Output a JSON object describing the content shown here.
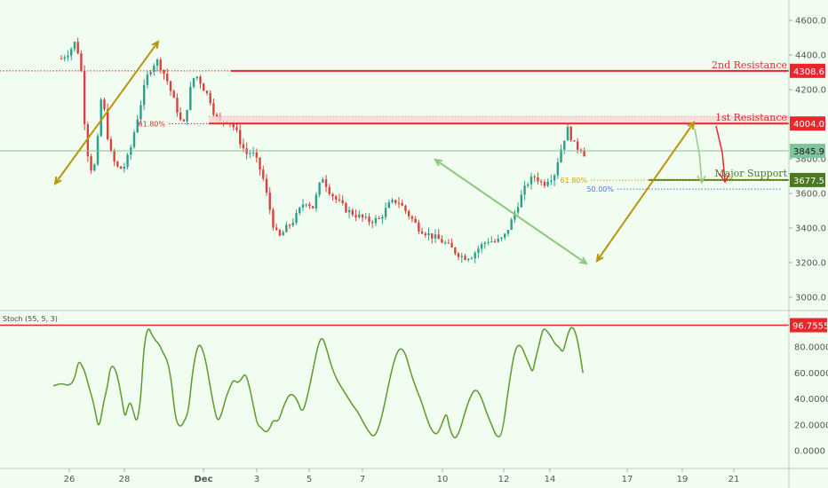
{
  "chart_data": [
    {
      "type": "candlestick",
      "name": "price",
      "ylim": [
        2880,
        4720
      ],
      "y_ticks": [
        "4600.0",
        "4400.0",
        "4200.0",
        "4000.0",
        "3800.0",
        "3600.0",
        "3400.0",
        "3200.0",
        "3000.0"
      ],
      "x_ticks": [
        "26",
        "28",
        "Dec",
        "3",
        "5",
        "7",
        "10",
        "12",
        "14",
        "17",
        "19",
        "21"
      ],
      "levels": [
        {
          "name": "2nd Resistance",
          "value": 4308.6,
          "label": "4308.6",
          "color": "#e8262b"
        },
        {
          "name": "1st Resistance",
          "value": 4004.0,
          "label": "4004.0",
          "color": "#e8262b"
        },
        {
          "name": "Major Support",
          "value": 3677.5,
          "label": "3677.5",
          "color": "#4a7a1c"
        }
      ],
      "last_price": {
        "value": 3845.9,
        "label": "3845.9",
        "color": "#7fc49a"
      },
      "fib_labels": {
        "left_618": "61.80%",
        "right_618": "61.80%",
        "right_500": "50.00%"
      },
      "close_path": [
        [
          -0.3,
          4380
        ],
        [
          0.0,
          4420
        ],
        [
          0.2,
          4470
        ],
        [
          0.4,
          4390
        ],
        [
          0.5,
          4220
        ],
        [
          0.6,
          3950
        ],
        [
          0.75,
          3770
        ],
        [
          0.9,
          3720
        ],
        [
          1.0,
          3800
        ],
        [
          1.1,
          3950
        ],
        [
          1.2,
          4140
        ],
        [
          1.3,
          4100
        ],
        [
          1.4,
          4000
        ],
        [
          1.5,
          3860
        ],
        [
          1.6,
          3820
        ],
        [
          1.75,
          3760
        ],
        [
          1.9,
          3740
        ],
        [
          2.1,
          3760
        ],
        [
          2.3,
          3850
        ],
        [
          2.5,
          3990
        ],
        [
          2.7,
          4120
        ],
        [
          2.9,
          4260
        ],
        [
          3.1,
          4330
        ],
        [
          3.3,
          4370
        ],
        [
          3.5,
          4320
        ],
        [
          3.7,
          4250
        ],
        [
          3.9,
          4160
        ],
        [
          4.1,
          4070
        ],
        [
          4.2,
          4020
        ],
        [
          4.35,
          4000
        ],
        [
          4.5,
          4150
        ],
        [
          4.6,
          4220
        ],
        [
          4.75,
          4290
        ],
        [
          4.9,
          4260
        ],
        [
          5.1,
          4200
        ],
        [
          5.3,
          4150
        ],
        [
          5.5,
          4050
        ],
        [
          5.7,
          4010
        ],
        [
          5.9,
          4030
        ],
        [
          6.1,
          4010
        ],
        [
          6.3,
          3960
        ],
        [
          6.5,
          3880
        ],
        [
          6.7,
          3830
        ],
        [
          6.9,
          3840
        ],
        [
          7.1,
          3780
        ],
        [
          7.3,
          3700
        ],
        [
          7.5,
          3560
        ],
        [
          7.7,
          3420
        ],
        [
          7.9,
          3340
        ],
        [
          8.2,
          3400
        ],
        [
          8.5,
          3450
        ],
        [
          8.9,
          3560
        ],
        [
          9.2,
          3520
        ],
        [
          9.4,
          3620
        ],
        [
          9.55,
          3700
        ],
        [
          9.8,
          3620
        ],
        [
          10.1,
          3560
        ],
        [
          10.5,
          3500
        ],
        [
          10.9,
          3470
        ],
        [
          11.3,
          3440
        ],
        [
          11.7,
          3450
        ],
        [
          12.1,
          3540
        ],
        [
          12.4,
          3560
        ],
        [
          12.8,
          3480
        ],
        [
          13.2,
          3400
        ],
        [
          13.6,
          3360
        ],
        [
          14.0,
          3330
        ],
        [
          14.3,
          3300
        ],
        [
          14.6,
          3260
        ],
        [
          14.9,
          3230
        ],
        [
          15.2,
          3240
        ],
        [
          15.5,
          3290
        ],
        [
          15.8,
          3330
        ],
        [
          16.1,
          3320
        ],
        [
          16.4,
          3340
        ],
        [
          16.7,
          3440
        ],
        [
          17.0,
          3560
        ],
        [
          17.3,
          3660
        ],
        [
          17.6,
          3700
        ],
        [
          17.9,
          3650
        ],
        [
          18.1,
          3690
        ],
        [
          18.3,
          3700
        ],
        [
          18.5,
          3820
        ],
        [
          18.7,
          3920
        ],
        [
          18.85,
          3980
        ],
        [
          19.0,
          3900
        ],
        [
          19.15,
          3860
        ],
        [
          19.3,
          3870
        ],
        [
          19.45,
          3830
        ]
      ],
      "annotations": [
        {
          "type": "text",
          "text": "2nd Resistance"
        },
        {
          "type": "text",
          "text": "1st Resistance"
        },
        {
          "type": "text",
          "text": "Major Support"
        }
      ]
    },
    {
      "type": "line",
      "name": "Stoch (55, 5, 3)",
      "legend": "Stoch (55, 5, 3)",
      "ylim": [
        -10,
        110
      ],
      "y_ticks": [
        "80.0000",
        "60.0000",
        "40.0000",
        "20.0000",
        "0.0000"
      ],
      "top_level": {
        "value": 96.7555,
        "label": "96.7555",
        "color": "#e8262b"
      },
      "color": "#5c9a2a",
      "series_points": [
        [
          -0.6,
          50
        ],
        [
          -0.3,
          52
        ],
        [
          0.0,
          50
        ],
        [
          0.2,
          55
        ],
        [
          0.35,
          70
        ],
        [
          0.5,
          65
        ],
        [
          0.6,
          60
        ],
        [
          0.8,
          45
        ],
        [
          0.9,
          38
        ],
        [
          1.0,
          28
        ],
        [
          1.1,
          18
        ],
        [
          1.2,
          25
        ],
        [
          1.3,
          38
        ],
        [
          1.45,
          50
        ],
        [
          1.55,
          65
        ],
        [
          1.7,
          65
        ],
        [
          1.85,
          55
        ],
        [
          2.0,
          38
        ],
        [
          2.1,
          25
        ],
        [
          2.2,
          33
        ],
        [
          2.3,
          38
        ],
        [
          2.4,
          32
        ],
        [
          2.55,
          20
        ],
        [
          2.7,
          40
        ],
        [
          2.8,
          75
        ],
        [
          2.9,
          90
        ],
        [
          3.0,
          95
        ],
        [
          3.1,
          90
        ],
        [
          3.25,
          85
        ],
        [
          3.4,
          82
        ],
        [
          3.55,
          75
        ],
        [
          3.7,
          70
        ],
        [
          3.85,
          55
        ],
        [
          3.95,
          35
        ],
        [
          4.05,
          22
        ],
        [
          4.2,
          18
        ],
        [
          4.35,
          23
        ],
        [
          4.5,
          30
        ],
        [
          4.65,
          60
        ],
        [
          4.8,
          77
        ],
        [
          4.9,
          82
        ],
        [
          5.0,
          80
        ],
        [
          5.15,
          70
        ],
        [
          5.3,
          52
        ],
        [
          5.45,
          35
        ],
        [
          5.6,
          22
        ],
        [
          5.75,
          28
        ],
        [
          5.9,
          40
        ],
        [
          6.05,
          48
        ],
        [
          6.2,
          55
        ],
        [
          6.35,
          52
        ],
        [
          6.5,
          55
        ],
        [
          6.65,
          60
        ],
        [
          6.8,
          50
        ],
        [
          6.95,
          35
        ],
        [
          7.1,
          20
        ],
        [
          7.25,
          18
        ],
        [
          7.4,
          14
        ],
        [
          7.55,
          16
        ],
        [
          7.7,
          24
        ],
        [
          7.9,
          22
        ],
        [
          8.1,
          35
        ],
        [
          8.35,
          45
        ],
        [
          8.6,
          40
        ],
        [
          8.8,
          28
        ],
        [
          9.0,
          42
        ],
        [
          9.2,
          62
        ],
        [
          9.4,
          82
        ],
        [
          9.55,
          88
        ],
        [
          9.7,
          80
        ],
        [
          9.9,
          65
        ],
        [
          10.1,
          55
        ],
        [
          10.3,
          48
        ],
        [
          10.5,
          42
        ],
        [
          10.7,
          35
        ],
        [
          10.9,
          30
        ],
        [
          11.1,
          22
        ],
        [
          11.3,
          15
        ],
        [
          11.5,
          10
        ],
        [
          11.7,
          18
        ],
        [
          11.9,
          35
        ],
        [
          12.1,
          55
        ],
        [
          12.3,
          72
        ],
        [
          12.5,
          80
        ],
        [
          12.7,
          75
        ],
        [
          12.9,
          60
        ],
        [
          13.1,
          48
        ],
        [
          13.3,
          38
        ],
        [
          13.5,
          25
        ],
        [
          13.7,
          15
        ],
        [
          13.9,
          12
        ],
        [
          14.1,
          22
        ],
        [
          14.25,
          30
        ],
        [
          14.35,
          18
        ],
        [
          14.55,
          8
        ],
        [
          14.75,
          15
        ],
        [
          14.95,
          30
        ],
        [
          15.15,
          42
        ],
        [
          15.35,
          48
        ],
        [
          15.55,
          42
        ],
        [
          15.75,
          30
        ],
        [
          15.95,
          20
        ],
        [
          16.15,
          10
        ],
        [
          16.35,
          12
        ],
        [
          16.6,
          50
        ],
        [
          16.8,
          75
        ],
        [
          16.95,
          82
        ],
        [
          17.1,
          80
        ],
        [
          17.25,
          72
        ],
        [
          17.4,
          65
        ],
        [
          17.5,
          60
        ],
        [
          17.6,
          70
        ],
        [
          17.75,
          82
        ],
        [
          17.9,
          95
        ],
        [
          18.05,
          92
        ],
        [
          18.2,
          88
        ],
        [
          18.35,
          82
        ],
        [
          18.5,
          80
        ],
        [
          18.65,
          75
        ],
        [
          18.8,
          88
        ],
        [
          18.95,
          96
        ],
        [
          19.1,
          93
        ],
        [
          19.25,
          80
        ],
        [
          19.4,
          60
        ]
      ]
    }
  ]
}
